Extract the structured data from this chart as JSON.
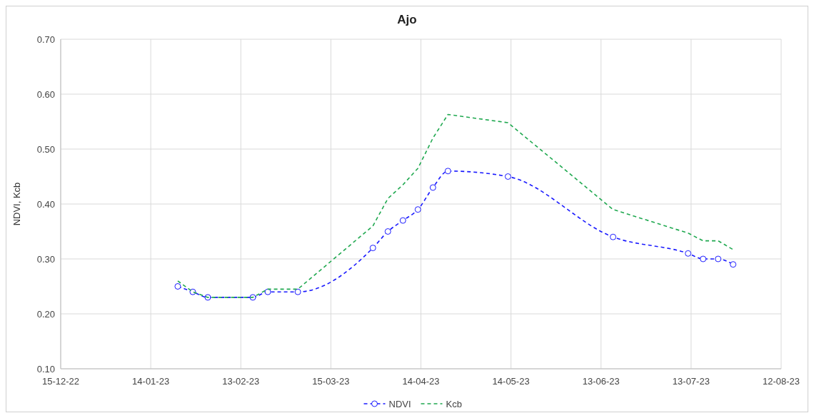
{
  "chart_data": {
    "type": "line",
    "title": "Ajo",
    "ylabel": "NDVI, Kcb",
    "x": [
      "2023-01-23",
      "2023-01-28",
      "2023-02-02",
      "2023-02-17",
      "2023-02-22",
      "2023-03-04",
      "2023-03-29",
      "2023-04-03",
      "2023-04-08",
      "2023-04-13",
      "2023-04-18",
      "2023-04-23",
      "2023-05-13",
      "2023-06-17",
      "2023-07-12",
      "2023-07-17",
      "2023-07-22",
      "2023-07-27"
    ],
    "series": [
      {
        "name": "NDVI",
        "color": "#1a1aff",
        "marker": "circle",
        "values": [
          0.25,
          0.24,
          0.23,
          0.23,
          0.24,
          0.24,
          0.32,
          0.35,
          0.37,
          0.39,
          0.43,
          0.46,
          0.45,
          0.34,
          0.31,
          0.3,
          0.3,
          0.29
        ]
      },
      {
        "name": "Kcb",
        "color": "#1fa84f",
        "marker": "none",
        "values": [
          0.26,
          0.24,
          0.23,
          0.23,
          0.245,
          0.245,
          0.36,
          0.41,
          0.435,
          0.465,
          0.52,
          0.563,
          0.548,
          0.39,
          0.347,
          0.333,
          0.333,
          0.317
        ]
      }
    ],
    "xlim": [
      "2022-12-15",
      "2023-08-12"
    ],
    "xticks": [
      {
        "value": "2022-12-15",
        "label": "15-12-22"
      },
      {
        "value": "2023-01-14",
        "label": "14-01-23"
      },
      {
        "value": "2023-02-13",
        "label": "13-02-23"
      },
      {
        "value": "2023-03-15",
        "label": "15-03-23"
      },
      {
        "value": "2023-04-14",
        "label": "14-04-23"
      },
      {
        "value": "2023-05-14",
        "label": "14-05-23"
      },
      {
        "value": "2023-06-13",
        "label": "13-06-23"
      },
      {
        "value": "2023-07-13",
        "label": "13-07-23"
      },
      {
        "value": "2023-08-12",
        "label": "12-08-23"
      }
    ],
    "ylim": [
      0.1,
      0.7
    ],
    "yticks": [
      {
        "value": 0.1,
        "label": "0.10"
      },
      {
        "value": 0.2,
        "label": "0.20"
      },
      {
        "value": 0.3,
        "label": "0.30"
      },
      {
        "value": 0.4,
        "label": "0.40"
      },
      {
        "value": 0.5,
        "label": "0.50"
      },
      {
        "value": 0.6,
        "label": "0.60"
      },
      {
        "value": 0.7,
        "label": "0.70"
      }
    ],
    "grid": true,
    "legend": "bottom",
    "line_style": "dashed"
  }
}
